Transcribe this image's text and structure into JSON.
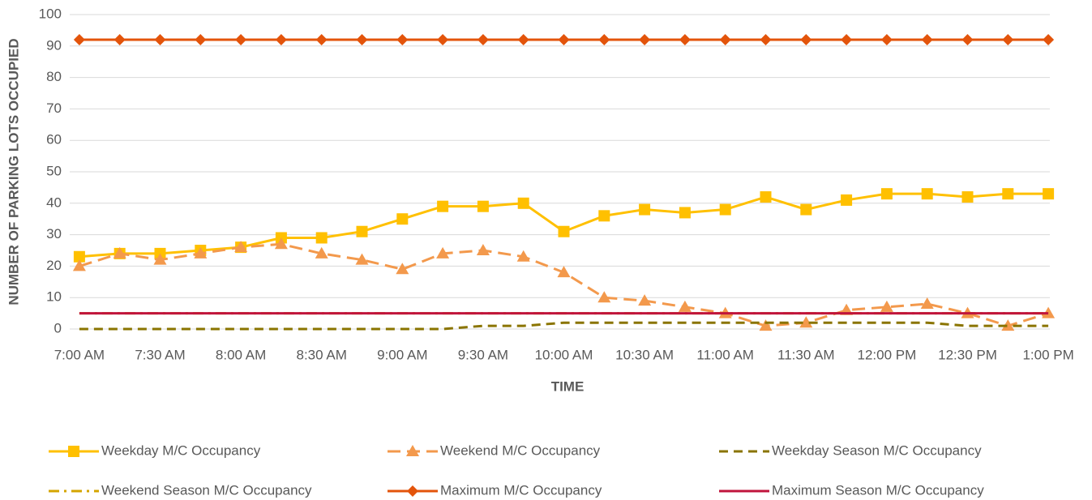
{
  "chart_data": {
    "type": "line",
    "xlabel": "TIME",
    "ylabel": "NUMBER OF PARKING LOTS OCCUPIED",
    "categories": [
      "7:00 AM",
      null,
      "7:30 AM",
      null,
      "8:00 AM",
      null,
      "8:30 AM",
      null,
      "9:00 AM",
      null,
      "9:30 AM",
      null,
      "10:00 AM",
      null,
      "10:30 AM",
      null,
      "11:00 AM",
      null,
      "11:30 AM",
      null,
      "12:00 PM",
      null,
      "12:30 PM",
      null,
      "1:00 PM"
    ],
    "series": [
      {
        "name": "Weekday M/C Occupancy",
        "color": "#ffc000",
        "values": [
          23,
          24,
          24,
          25,
          26,
          29,
          29,
          31,
          35,
          39,
          39,
          40,
          31,
          36,
          38,
          37,
          38,
          42,
          38,
          41,
          43,
          43,
          42,
          43,
          43
        ]
      },
      {
        "name": "Weekend M/C Occupancy",
        "color": "#f3994c",
        "values": [
          20,
          24,
          22,
          24,
          26,
          27,
          24,
          22,
          19,
          24,
          25,
          23,
          18,
          10,
          9,
          7,
          5,
          1,
          2,
          6,
          7,
          8,
          5,
          1,
          5
        ]
      },
      {
        "name": "Weekday Season M/C Occupancy",
        "color": "#8a7400",
        "values": [
          0,
          0,
          0,
          0,
          0,
          0,
          0,
          0,
          0,
          0,
          1,
          1,
          2,
          2,
          2,
          2,
          2,
          2,
          2,
          2,
          2,
          2,
          1,
          1,
          1
        ]
      },
      {
        "name": "Weekend Season M/C Occupancy",
        "color": "#d4a500",
        "values": [
          5,
          5,
          5,
          5,
          5,
          5,
          5,
          5,
          5,
          5,
          5,
          5,
          5,
          5,
          5,
          5,
          5,
          5,
          5,
          5,
          5,
          5,
          5,
          5,
          5
        ]
      },
      {
        "name": "Maximum M/C Occupancy",
        "color": "#e3540b",
        "values": [
          92,
          92,
          92,
          92,
          92,
          92,
          92,
          92,
          92,
          92,
          92,
          92,
          92,
          92,
          92,
          92,
          92,
          92,
          92,
          92,
          92,
          92,
          92,
          92,
          92
        ]
      },
      {
        "name": "Maximum Season M/C Occupancy",
        "color": "#c0143c",
        "values": [
          5,
          5,
          5,
          5,
          5,
          5,
          5,
          5,
          5,
          5,
          5,
          5,
          5,
          5,
          5,
          5,
          5,
          5,
          5,
          5,
          5,
          5,
          5,
          5,
          5
        ]
      }
    ],
    "ylim": [
      0,
      100
    ],
    "yticks": [
      0,
      10,
      20,
      30,
      40,
      50,
      60,
      70,
      80,
      90,
      100
    ],
    "grid": true
  }
}
